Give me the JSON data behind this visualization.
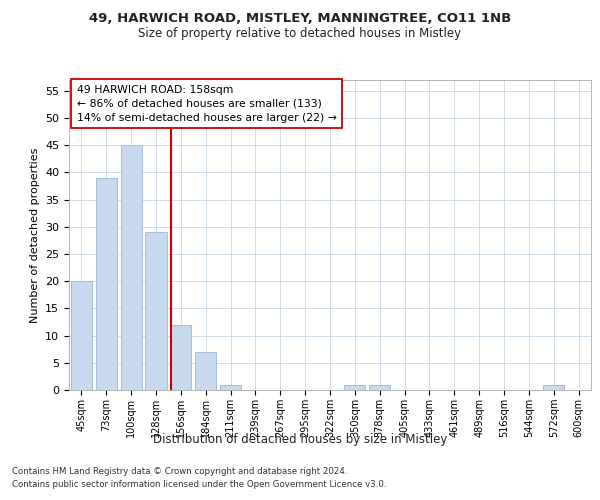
{
  "title_line1": "49, HARWICH ROAD, MISTLEY, MANNINGTREE, CO11 1NB",
  "title_line2": "Size of property relative to detached houses in Mistley",
  "xlabel": "Distribution of detached houses by size in Mistley",
  "ylabel": "Number of detached properties",
  "categories": [
    "45sqm",
    "73sqm",
    "100sqm",
    "128sqm",
    "156sqm",
    "184sqm",
    "211sqm",
    "239sqm",
    "267sqm",
    "295sqm",
    "322sqm",
    "350sqm",
    "378sqm",
    "405sqm",
    "433sqm",
    "461sqm",
    "489sqm",
    "516sqm",
    "544sqm",
    "572sqm",
    "600sqm"
  ],
  "values": [
    20,
    39,
    45,
    29,
    12,
    7,
    1,
    0,
    0,
    0,
    0,
    1,
    1,
    0,
    0,
    0,
    0,
    0,
    0,
    1,
    0
  ],
  "bar_color": "#c8d9ed",
  "bar_edge_color": "#9ab8d8",
  "vline_color": "#cc0000",
  "vline_pos": 3.6,
  "ylim": [
    0,
    57
  ],
  "yticks": [
    0,
    5,
    10,
    15,
    20,
    25,
    30,
    35,
    40,
    45,
    50,
    55
  ],
  "annotation_text": "49 HARWICH ROAD: 158sqm\n← 86% of detached houses are smaller (133)\n14% of semi-detached houses are larger (22) →",
  "annotation_box_color": "#ffffff",
  "annotation_box_edge": "#cc0000",
  "footer_line1": "Contains HM Land Registry data © Crown copyright and database right 2024.",
  "footer_line2": "Contains public sector information licensed under the Open Government Licence v3.0.",
  "background_color": "#ffffff",
  "grid_color": "#c8d8e8"
}
